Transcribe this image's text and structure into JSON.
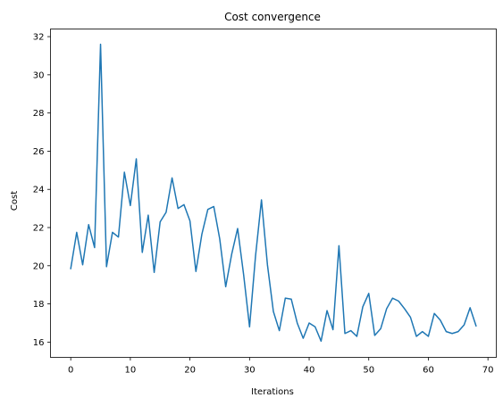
{
  "chart_data": {
    "type": "line",
    "title": "Cost convergence",
    "xlabel": "Iterations",
    "ylabel": "Cost",
    "xlim": [
      -3.4,
      71.4
    ],
    "ylim": [
      15.2,
      32.4
    ],
    "xticks": [
      "0",
      "10",
      "20",
      "30",
      "40",
      "50",
      "60",
      "70"
    ],
    "yticks": [
      "16",
      "18",
      "20",
      "22",
      "24",
      "26",
      "28",
      "30",
      "32"
    ],
    "grid": false,
    "line_color": "#1f77b4",
    "series": [
      {
        "x": [
          0,
          1,
          2,
          3,
          4,
          5,
          6,
          7,
          8,
          9,
          10,
          11,
          12,
          13,
          14,
          15,
          16,
          17,
          18,
          19,
          20,
          21,
          22,
          23,
          24,
          25,
          26,
          27,
          28,
          29,
          30,
          31,
          32,
          33,
          34,
          35,
          36,
          37,
          38,
          39,
          40,
          41,
          42,
          43,
          44,
          45,
          46,
          47,
          48,
          49,
          50,
          51,
          52,
          53,
          54,
          55,
          56,
          57,
          58,
          59,
          60,
          61,
          62,
          63,
          64,
          65,
          66,
          67,
          68
        ],
        "values": [
          19.85,
          21.75,
          20.05,
          22.15,
          20.95,
          31.6,
          19.95,
          21.75,
          21.5,
          24.9,
          23.15,
          25.6,
          20.7,
          22.65,
          19.65,
          22.3,
          22.8,
          24.6,
          23.0,
          23.2,
          22.35,
          19.7,
          21.65,
          22.95,
          23.1,
          21.4,
          18.9,
          20.6,
          21.95,
          19.55,
          16.8,
          20.5,
          23.45,
          20.05,
          17.6,
          16.6,
          18.3,
          18.25,
          17.0,
          16.2,
          17.0,
          16.8,
          16.05,
          17.65,
          16.65,
          21.05,
          16.45,
          16.6,
          16.3,
          17.85,
          18.55,
          16.35,
          16.7,
          17.75,
          18.3,
          18.15,
          17.75,
          17.3,
          16.3,
          16.55,
          16.3,
          17.5,
          17.15,
          16.55,
          16.45,
          16.55,
          16.9,
          17.8,
          16.85
        ]
      }
    ]
  }
}
